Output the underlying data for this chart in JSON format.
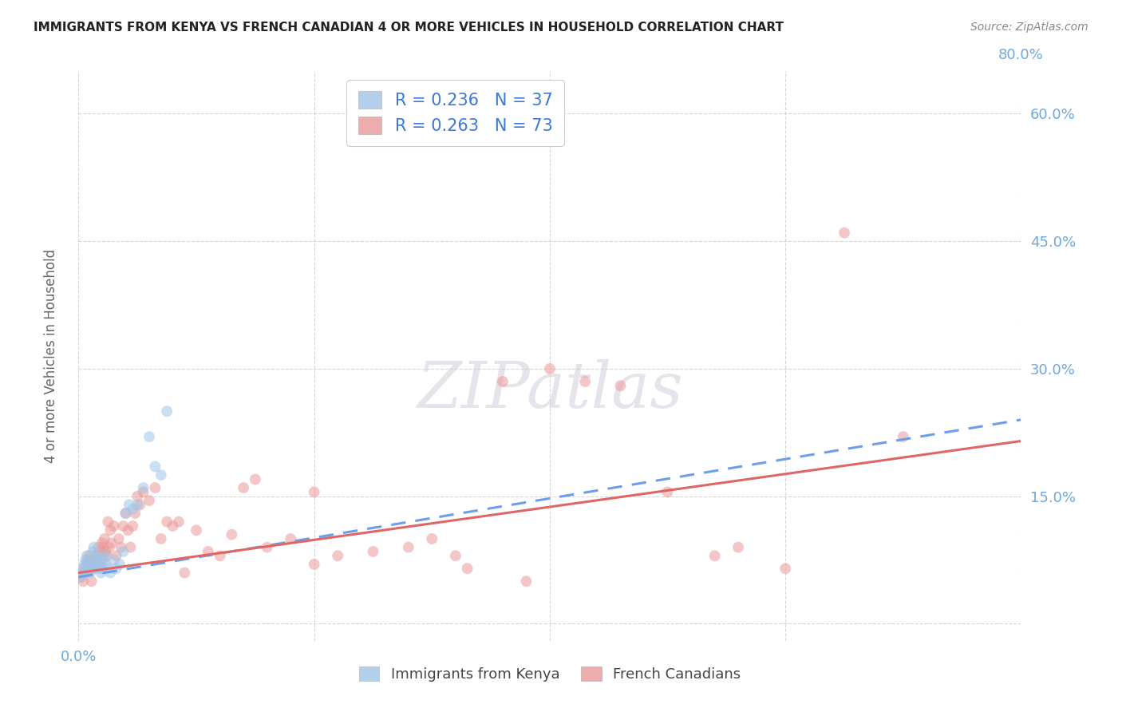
{
  "title": "IMMIGRANTS FROM KENYA VS FRENCH CANADIAN 4 OR MORE VEHICLES IN HOUSEHOLD CORRELATION CHART",
  "source": "Source: ZipAtlas.com",
  "ylabel": "4 or more Vehicles in Household",
  "xlim": [
    0.0,
    0.8
  ],
  "ylim": [
    -0.02,
    0.65
  ],
  "xticks": [
    0.0,
    0.2,
    0.4,
    0.6,
    0.8
  ],
  "yticks": [
    0.0,
    0.15,
    0.3,
    0.45,
    0.6
  ],
  "right_yticklabels": [
    "",
    "15.0%",
    "30.0%",
    "45.0%",
    "60.0%"
  ],
  "legend_label_blue": "R = 0.236   N = 37",
  "legend_label_pink": "R = 0.263   N = 73",
  "legend_label_blue_short": "Immigrants from Kenya",
  "legend_label_pink_short": "French Canadians",
  "blue_color": "#9fc5e8",
  "pink_color": "#ea9999",
  "blue_line_color": "#6d9eeb",
  "pink_line_color": "#e06666",
  "grid_color": "#cccccc",
  "title_color": "#222222",
  "source_color": "#888888",
  "axis_label_color": "#666666",
  "tick_color": "#6fa8dc",
  "blue_scatter_x": [
    0.002,
    0.003,
    0.004,
    0.005,
    0.006,
    0.007,
    0.008,
    0.009,
    0.01,
    0.011,
    0.012,
    0.013,
    0.014,
    0.015,
    0.016,
    0.017,
    0.018,
    0.019,
    0.02,
    0.021,
    0.022,
    0.023,
    0.025,
    0.027,
    0.03,
    0.032,
    0.035,
    0.038,
    0.04,
    0.043,
    0.046,
    0.05,
    0.055,
    0.06,
    0.065,
    0.07,
    0.075
  ],
  "blue_scatter_y": [
    0.055,
    0.06,
    0.065,
    0.07,
    0.075,
    0.08,
    0.07,
    0.065,
    0.06,
    0.075,
    0.085,
    0.09,
    0.07,
    0.08,
    0.075,
    0.065,
    0.07,
    0.06,
    0.065,
    0.075,
    0.08,
    0.07,
    0.065,
    0.06,
    0.075,
    0.065,
    0.07,
    0.085,
    0.13,
    0.14,
    0.135,
    0.14,
    0.16,
    0.22,
    0.185,
    0.175,
    0.25
  ],
  "pink_scatter_x": [
    0.002,
    0.004,
    0.005,
    0.006,
    0.007,
    0.008,
    0.009,
    0.01,
    0.011,
    0.012,
    0.013,
    0.014,
    0.015,
    0.016,
    0.017,
    0.018,
    0.019,
    0.02,
    0.021,
    0.022,
    0.023,
    0.024,
    0.025,
    0.026,
    0.027,
    0.028,
    0.03,
    0.032,
    0.034,
    0.036,
    0.038,
    0.04,
    0.042,
    0.044,
    0.046,
    0.048,
    0.05,
    0.052,
    0.055,
    0.06,
    0.065,
    0.07,
    0.075,
    0.08,
    0.085,
    0.09,
    0.1,
    0.11,
    0.12,
    0.13,
    0.14,
    0.16,
    0.18,
    0.2,
    0.22,
    0.25,
    0.28,
    0.3,
    0.33,
    0.36,
    0.4,
    0.43,
    0.46,
    0.5,
    0.54,
    0.56,
    0.6,
    0.65,
    0.7,
    0.2,
    0.32,
    0.38,
    0.15
  ],
  "pink_scatter_y": [
    0.055,
    0.05,
    0.065,
    0.06,
    0.07,
    0.075,
    0.08,
    0.065,
    0.05,
    0.07,
    0.065,
    0.075,
    0.08,
    0.07,
    0.09,
    0.085,
    0.075,
    0.095,
    0.09,
    0.1,
    0.085,
    0.08,
    0.12,
    0.09,
    0.11,
    0.095,
    0.115,
    0.08,
    0.1,
    0.09,
    0.115,
    0.13,
    0.11,
    0.09,
    0.115,
    0.13,
    0.15,
    0.14,
    0.155,
    0.145,
    0.16,
    0.1,
    0.12,
    0.115,
    0.12,
    0.06,
    0.11,
    0.085,
    0.08,
    0.105,
    0.16,
    0.09,
    0.1,
    0.07,
    0.08,
    0.085,
    0.09,
    0.1,
    0.065,
    0.285,
    0.3,
    0.285,
    0.28,
    0.155,
    0.08,
    0.09,
    0.065,
    0.46,
    0.22,
    0.155,
    0.08,
    0.05,
    0.17
  ],
  "blue_trend_x": [
    0.0,
    0.8
  ],
  "blue_trend_y": [
    0.055,
    0.24
  ],
  "pink_trend_x": [
    0.0,
    0.8
  ],
  "pink_trend_y": [
    0.06,
    0.215
  ],
  "marker_size": 100,
  "marker_alpha": 0.55,
  "background_color": "#ffffff",
  "plot_bg_color": "#ffffff",
  "watermark_text": "ZIPatlas",
  "watermark_color": "#d0c8d8",
  "watermark_alpha": 0.5
}
